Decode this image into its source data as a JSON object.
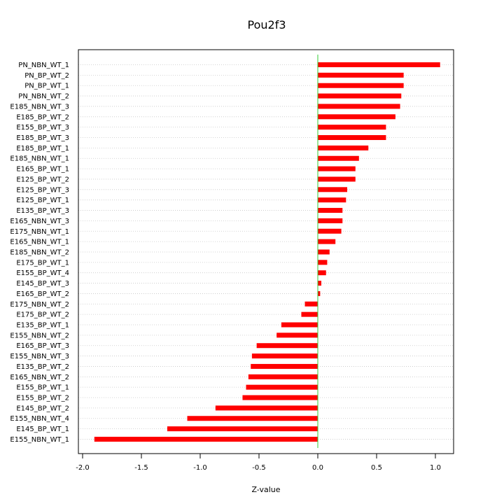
{
  "chart_data": {
    "type": "bar",
    "orientation": "horizontal",
    "title": "Pou2f3",
    "xlabel": "Z-value",
    "ylabel": "",
    "xlim": [
      -2.0,
      1.2
    ],
    "xticks": [
      -2.0,
      -1.5,
      -1.0,
      -0.5,
      0.0,
      0.5,
      1.0
    ],
    "xtick_labels": [
      "-2.0",
      "-1.5",
      "-1.0",
      "-0.5",
      "0.0",
      "0.5",
      "1.0"
    ],
    "grid": "horizontal dotted",
    "bar_color": "#ff0000",
    "zero_line_color": "#33cc33",
    "categories": [
      "PN_NBN_WT_1",
      "PN_BP_WT_2",
      "PN_BP_WT_1",
      "PN_NBN_WT_2",
      "E185_NBN_WT_3",
      "E185_BP_WT_2",
      "E155_BP_WT_3",
      "E185_BP_WT_3",
      "E185_BP_WT_1",
      "E185_NBN_WT_1",
      "E165_BP_WT_1",
      "E125_BP_WT_2",
      "E125_BP_WT_3",
      "E125_BP_WT_1",
      "E135_BP_WT_3",
      "E165_NBN_WT_3",
      "E175_NBN_WT_1",
      "E165_NBN_WT_1",
      "E185_NBN_WT_2",
      "E175_BP_WT_1",
      "E155_BP_WT_4",
      "E145_BP_WT_3",
      "E165_BP_WT_2",
      "E175_NBN_WT_2",
      "E175_BP_WT_2",
      "E135_BP_WT_1",
      "E155_NBN_WT_2",
      "E165_BP_WT_3",
      "E155_NBN_WT_3",
      "E135_BP_WT_2",
      "E165_NBN_WT_2",
      "E155_BP_WT_1",
      "E155_BP_WT_2",
      "E145_BP_WT_2",
      "E155_NBN_WT_4",
      "E145_BP_WT_1",
      "E155_NBN_WT_1"
    ],
    "values": [
      1.04,
      0.73,
      0.73,
      0.71,
      0.7,
      0.66,
      0.58,
      0.58,
      0.43,
      0.35,
      0.32,
      0.32,
      0.25,
      0.24,
      0.21,
      0.21,
      0.2,
      0.15,
      0.1,
      0.08,
      0.07,
      0.03,
      0.02,
      -0.11,
      -0.14,
      -0.31,
      -0.35,
      -0.52,
      -0.56,
      -0.57,
      -0.59,
      -0.61,
      -0.64,
      -0.87,
      -1.11,
      -1.28,
      -1.9
    ]
  }
}
